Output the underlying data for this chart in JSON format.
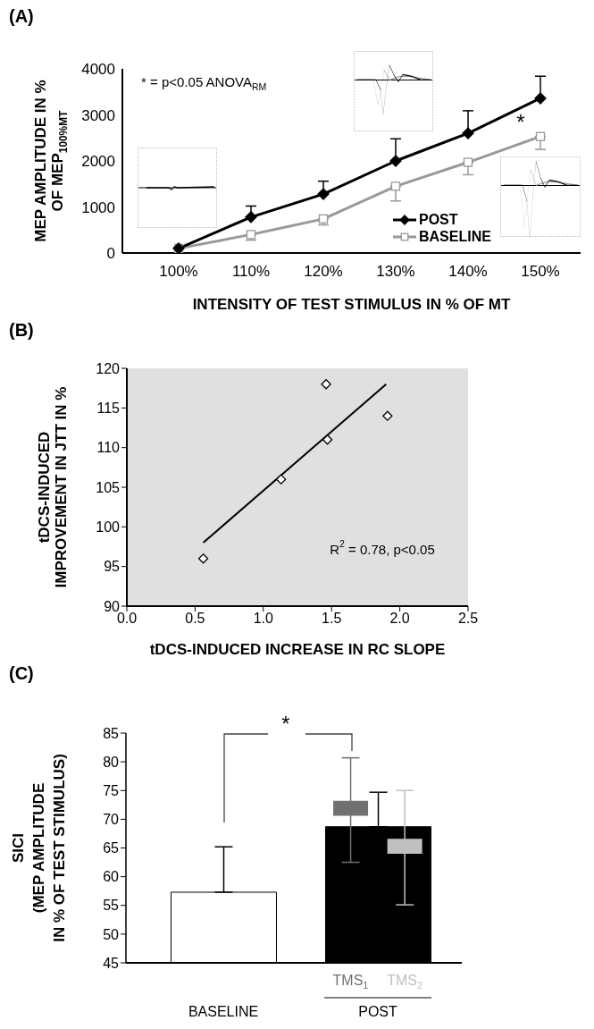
{
  "chart_data": [
    {
      "type": "line",
      "title": "(A)",
      "xlabel": "INTENSITY OF TEST STIMULUS IN % OF MT",
      "ylabel": "MEP AMPLITUDE IN %\nOF MEP$_{100%MT}$",
      "categories": [
        "100%",
        "110%",
        "120%",
        "130%",
        "140%",
        "150%"
      ],
      "series": [
        {
          "name": "POST",
          "color": "#000000",
          "marker": "diamond",
          "values": [
            100,
            780,
            1280,
            2000,
            2600,
            3360
          ],
          "errors": [
            null,
            [
              780,
              1020
            ],
            [
              1280,
              1560
            ],
            [
              2000,
              2480
            ],
            [
              2600,
              3090
            ],
            [
              3360,
              3840
            ]
          ]
        },
        {
          "name": "BASELINE",
          "color": "#999999",
          "marker": "square",
          "values": [
            100,
            400,
            740,
            1450,
            1970,
            2530
          ],
          "errors": [
            null,
            [
              280,
              400
            ],
            [
              610,
              740
            ],
            [
              1130,
              1450
            ],
            [
              1700,
              1970
            ],
            [
              2250,
              2530
            ]
          ]
        }
      ],
      "ylim": [
        0,
        4000
      ],
      "yticks": [
        0,
        1000,
        2000,
        3000,
        4000
      ],
      "legend": "bottom right",
      "annotations": [
        "* = p<0.05 ANOVA$_{RM}$",
        "*"
      ]
    },
    {
      "type": "scatter",
      "title": "(B)",
      "xlabel": "tDCS-INDUCED INCREASE IN RC SLOPE",
      "ylabel": "tDCS-INDUCED\nIMPROVEMENT IN JTT IN %",
      "series": [
        {
          "type": "scatter",
          "color": "#000000",
          "marker": "diamond",
          "x": [
            0.56,
            1.13,
            1.46,
            1.47,
            1.91
          ],
          "values": [
            96,
            106,
            118,
            111,
            114
          ]
        },
        {
          "type": "line",
          "color": "#000000",
          "x": [
            0.56,
            1.9
          ],
          "values": [
            98,
            118
          ]
        }
      ],
      "xlim": [
        0,
        2.5
      ],
      "xticks": [
        {
          "value": 0,
          "label": "0.0"
        },
        {
          "value": 0.5,
          "label": "0.5"
        },
        {
          "value": 1,
          "label": "1.0"
        },
        {
          "value": 1.5,
          "label": "1.5"
        },
        {
          "value": 2,
          "label": "2.0"
        },
        {
          "value": 2.5,
          "label": "2.5"
        }
      ],
      "ylim": [
        90,
        120
      ],
      "yticks": [
        90,
        95,
        100,
        105,
        110,
        115,
        120
      ],
      "annotations": [
        "R$^{2}$ = 0.78, p<0.05"
      ]
    },
    {
      "type": "bar",
      "title": "(C)",
      "ylabel": "SICI\n(MEP AMPLITUDE\nIN % OF TEST STIMULUS)",
      "categories": [
        "BASELINE",
        "POST"
      ],
      "series": [
        {
          "colors": [
            "#ffffff",
            "#000000"
          ],
          "color": "#000000",
          "values": [
            57.3,
            68.7
          ],
          "errors": [
            [
              57.3,
              65.2
            ],
            [
              68.7,
              74.7
            ]
          ]
        },
        {
          "name": "TMS$_{1}$",
          "color": "#707070",
          "values": [
            null,
            2.6
          ],
          "base": [
            null,
            70.6
          ],
          "errors": [
            null,
            [
              62.5,
              80.7
            ]
          ]
        },
        {
          "name": "TMS$_{2}$",
          "color": "#c0c0c0",
          "values": [
            null,
            2.6
          ],
          "base": [
            null,
            64.0
          ],
          "errors": [
            null,
            [
              55.1,
              75.0
            ]
          ]
        }
      ],
      "ylim": [
        45,
        85
      ],
      "yticks": [
        45,
        50,
        55,
        60,
        65,
        70,
        75,
        80,
        85
      ],
      "annotations": [
        "*"
      ]
    }
  ]
}
